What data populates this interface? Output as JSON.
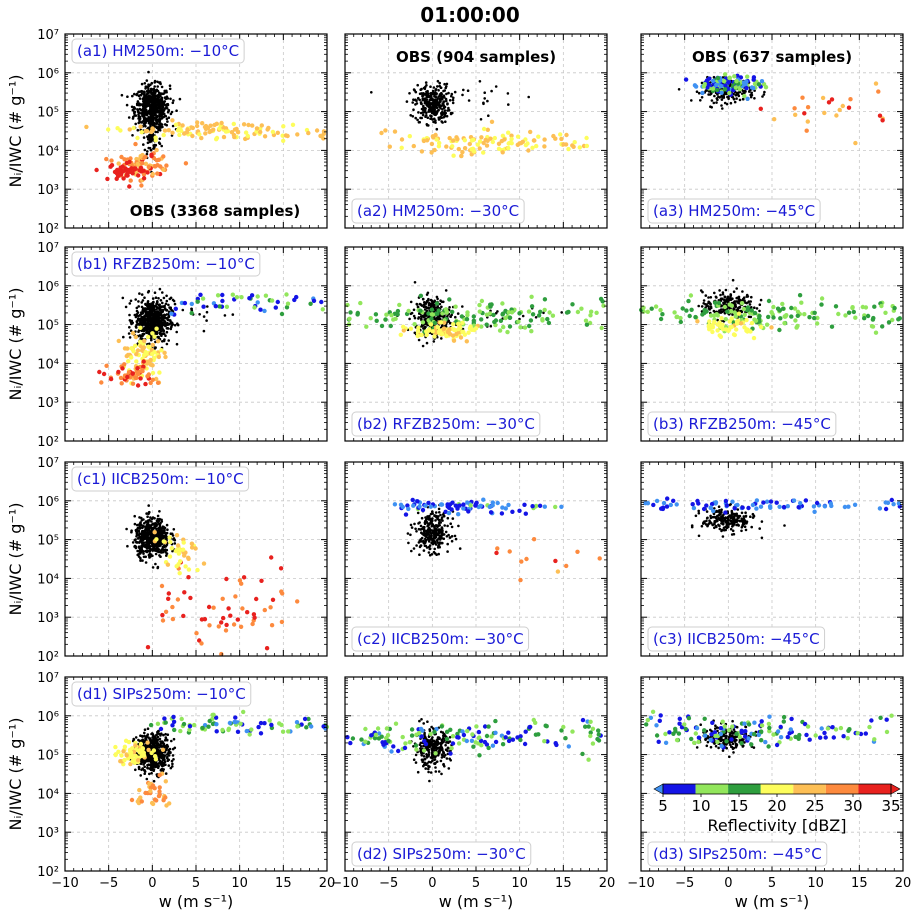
{
  "chart_data": {
    "type": "scatter",
    "title": "01:00:00",
    "xlabel": "w (m s⁻¹)",
    "ylabel": "Nᵢ/IWC (# g⁻¹)",
    "xlim": [
      -10,
      20
    ],
    "ylim": [
      100,
      10000000
    ],
    "yscale": "log",
    "grid": true,
    "xticks": [
      "−10",
      "−5",
      "0",
      "5",
      "10",
      "15",
      "20"
    ],
    "yticks": [
      "10²",
      "10³",
      "10⁴",
      "10⁵",
      "10⁶",
      "10⁷"
    ],
    "colorbar": {
      "label": "Reflectivity [dBZ]",
      "ticks": [
        "5",
        "10",
        "15",
        "20",
        "25",
        "30",
        "35"
      ],
      "bounds": [
        5,
        10,
        15,
        20,
        25,
        30,
        35
      ],
      "colors": [
        "#1414e6",
        "#92e65c",
        "#2e9e3e",
        "#fdfd5c",
        "#fdbf55",
        "#fd8a3e",
        "#e8211e"
      ],
      "under_color": "#3f91f2",
      "over_color": "#e8211e"
    },
    "observations": [
      {
        "panel": "a1",
        "text": "OBS (3368 samples)"
      },
      {
        "panel": "a2",
        "text": "OBS (904 samples)"
      },
      {
        "panel": "a3",
        "text": "OBS (637 samples)"
      }
    ],
    "panels": [
      {
        "id": "a1",
        "label": "(a1) HM250m: −10°C"
      },
      {
        "id": "a2",
        "label": "(a2) HM250m: −30°C"
      },
      {
        "id": "a3",
        "label": "(a3) HM250m: −45°C"
      },
      {
        "id": "b1",
        "label": "(b1) RFZB250m: −10°C"
      },
      {
        "id": "b2",
        "label": "(b2) RFZB250m: −30°C"
      },
      {
        "id": "b3",
        "label": "(b3) RFZB250m: −45°C"
      },
      {
        "id": "c1",
        "label": "(c1) IICB250m: −10°C"
      },
      {
        "id": "c2",
        "label": "(c2) IICB250m: −30°C"
      },
      {
        "id": "c3",
        "label": "(c3) IICB250m: −45°C"
      },
      {
        "id": "d1",
        "label": "(d1) SIPs250m: −10°C"
      },
      {
        "id": "d2",
        "label": "(d2) SIPs250m: −30°C"
      },
      {
        "id": "d3",
        "label": "(d3) SIPs250m: −45°C"
      }
    ],
    "series": [
      {
        "name": "OBS",
        "color": "#000000",
        "clusters": [
          {
            "panel": "a1",
            "n": 600,
            "w": [
              0,
              1.0
            ],
            "logN": [
              5.1,
              0.28
            ]
          },
          {
            "panel": "a1",
            "n": 80,
            "w": [
              0,
              0.5
            ],
            "logN": [
              4.3,
              0.3
            ]
          },
          {
            "panel": "a2",
            "n": 300,
            "w": [
              0,
              1.0
            ],
            "logN": [
              5.2,
              0.25
            ]
          },
          {
            "panel": "a2",
            "n": 20,
            "w": [
              5,
              4
            ],
            "logN": [
              5.4,
              0.25
            ]
          },
          {
            "panel": "a3",
            "n": 220,
            "w": [
              0,
              1.5
            ],
            "logN": [
              5.55,
              0.15
            ]
          },
          {
            "panel": "b1",
            "n": 600,
            "w": [
              0,
              1.0
            ],
            "logN": [
              5.1,
              0.28
            ]
          },
          {
            "panel": "b1",
            "n": 30,
            "w": [
              4,
              3
            ],
            "logN": [
              5.3,
              0.25
            ]
          },
          {
            "panel": "b2",
            "n": 300,
            "w": [
              0,
              1.0
            ],
            "logN": [
              5.2,
              0.25
            ]
          },
          {
            "panel": "b2",
            "n": 30,
            "w": [
              6,
              5
            ],
            "logN": [
              5.2,
              0.25
            ]
          },
          {
            "panel": "b3",
            "n": 220,
            "w": [
              0,
              1.5
            ],
            "logN": [
              5.5,
              0.18
            ]
          },
          {
            "panel": "c1",
            "n": 550,
            "w": [
              0,
              1.0
            ],
            "logN": [
              5.05,
              0.25
            ]
          },
          {
            "panel": "c2",
            "n": 280,
            "w": [
              0,
              1.0
            ],
            "logN": [
              5.2,
              0.25
            ]
          },
          {
            "panel": "c3",
            "n": 220,
            "w": [
              0,
              1.5
            ],
            "logN": [
              5.5,
              0.15
            ]
          },
          {
            "panel": "d1",
            "n": 550,
            "w": [
              0,
              1.0
            ],
            "logN": [
              5.05,
              0.25
            ]
          },
          {
            "panel": "d2",
            "n": 280,
            "w": [
              0,
              1.0
            ],
            "logN": [
              5.15,
              0.25
            ]
          },
          {
            "panel": "d3",
            "n": 220,
            "w": [
              0,
              1.5
            ],
            "logN": [
              5.45,
              0.15
            ]
          }
        ]
      },
      {
        "name": "HM250m",
        "colorscale": "Reflectivity [dBZ]",
        "clusters": [
          {
            "panel": "a1",
            "n": 120,
            "w": [
              6,
              4.5
            ],
            "logN": [
              4.5,
              0.12
            ],
            "w_range": [
              -1,
              20
            ],
            "dBZ": [
              22,
              30
            ]
          },
          {
            "panel": "a1",
            "n": 80,
            "w": [
              -1.5,
              1.5
            ],
            "logN": [
              3.6,
              0.2
            ],
            "dBZ": [
              27,
              36
            ]
          },
          {
            "panel": "a1",
            "n": 40,
            "w": [
              -3,
              1.2
            ],
            "logN": [
              3.45,
              0.1
            ],
            "dBZ": [
              36,
              40
            ]
          },
          {
            "panel": "a2",
            "n": 120,
            "w": [
              5,
              5
            ],
            "logN": [
              4.2,
              0.15
            ],
            "w_range": [
              -2,
              18
            ],
            "dBZ": [
              22,
              30
            ]
          },
          {
            "panel": "a3",
            "n": 120,
            "w": [
              0,
              2
            ],
            "logN": [
              5.7,
              0.12
            ],
            "dBZ": [
              0,
              18
            ]
          },
          {
            "panel": "a3",
            "n": 25,
            "w": [
              12,
              4
            ],
            "logN": [
              5.1,
              0.3
            ],
            "dBZ": [
              25,
              38
            ]
          }
        ]
      },
      {
        "name": "RFZB250m",
        "colorscale": "Reflectivity [dBZ]",
        "clusters": [
          {
            "panel": "b1",
            "n": 50,
            "w": [
              9,
              5
            ],
            "logN": [
              5.6,
              0.15
            ],
            "w_range": [
              2,
              20
            ],
            "dBZ": [
              3,
              17
            ]
          },
          {
            "panel": "b1",
            "n": 90,
            "w": [
              -1,
              1.2
            ],
            "logN": [
              4.2,
              0.3
            ],
            "dBZ": [
              20,
              30
            ]
          },
          {
            "panel": "b1",
            "n": 50,
            "w": [
              -2,
              1.5
            ],
            "logN": [
              3.7,
              0.15
            ],
            "dBZ": [
              30,
              40
            ]
          },
          {
            "panel": "b2",
            "n": 150,
            "w": [
              3,
              6
            ],
            "logN": [
              5.2,
              0.2
            ],
            "w_range": [
              -10,
              20
            ],
            "dBZ": [
              10,
              20
            ]
          },
          {
            "panel": "b2",
            "n": 80,
            "w": [
              1,
              2
            ],
            "logN": [
              4.85,
              0.1
            ],
            "dBZ": [
              20,
              28
            ]
          },
          {
            "panel": "b3",
            "n": 150,
            "w": [
              3,
              6
            ],
            "logN": [
              5.25,
              0.18
            ],
            "w_range": [
              -10,
              20
            ],
            "dBZ": [
              10,
              20
            ]
          },
          {
            "panel": "b3",
            "n": 50,
            "w": [
              0,
              2
            ],
            "logN": [
              4.95,
              0.12
            ],
            "dBZ": [
              20,
              26
            ]
          }
        ]
      },
      {
        "name": "IICB250m",
        "colorscale": "Reflectivity [dBZ]",
        "clusters": [
          {
            "panel": "c1",
            "n": 60,
            "w": [
              7,
              3.5
            ],
            "logN": [
              3.2,
              0.6
            ],
            "w_range": [
              0,
              15
            ],
            "dBZ": [
              30,
              40
            ]
          },
          {
            "panel": "c1",
            "n": 40,
            "w": [
              3,
              1.2
            ],
            "logN": [
              4.6,
              0.3
            ],
            "dBZ": [
              22,
              30
            ]
          },
          {
            "panel": "c2",
            "n": 80,
            "w": [
              3,
              4
            ],
            "logN": [
              5.85,
              0.08
            ],
            "w_range": [
              -4,
              15
            ],
            "dBZ": [
              0,
              12
            ]
          },
          {
            "panel": "c2",
            "n": 12,
            "w": [
              14,
              3
            ],
            "logN": [
              4.7,
              0.3
            ],
            "dBZ": [
              25,
              38
            ]
          },
          {
            "panel": "c3",
            "n": 80,
            "w": [
              5,
              6
            ],
            "logN": [
              5.9,
              0.08
            ],
            "w_range": [
              -10,
              20
            ],
            "dBZ": [
              0,
              8
            ]
          }
        ]
      },
      {
        "name": "SIPs250m",
        "colorscale": "Reflectivity [dBZ]",
        "clusters": [
          {
            "panel": "d1",
            "n": 80,
            "w": [
              9,
              5
            ],
            "logN": [
              5.75,
              0.12
            ],
            "w_range": [
              2,
              20
            ],
            "dBZ": [
              3,
              20
            ]
          },
          {
            "panel": "d1",
            "n": 60,
            "w": [
              -2,
              1.2
            ],
            "logN": [
              5.0,
              0.15
            ],
            "dBZ": [
              20,
              26
            ]
          },
          {
            "panel": "d1",
            "n": 35,
            "w": [
              0,
              1
            ],
            "logN": [
              4.0,
              0.2
            ],
            "dBZ": [
              27,
              33
            ]
          },
          {
            "panel": "d2",
            "n": 150,
            "w": [
              3,
              6
            ],
            "logN": [
              5.45,
              0.2
            ],
            "w_range": [
              -10,
              20
            ],
            "dBZ": [
              3,
              20
            ]
          },
          {
            "panel": "d3",
            "n": 150,
            "w": [
              2,
              7
            ],
            "logN": [
              5.6,
              0.2
            ],
            "w_range": [
              -10,
              20
            ],
            "dBZ": [
              3,
              20
            ]
          }
        ]
      }
    ]
  }
}
